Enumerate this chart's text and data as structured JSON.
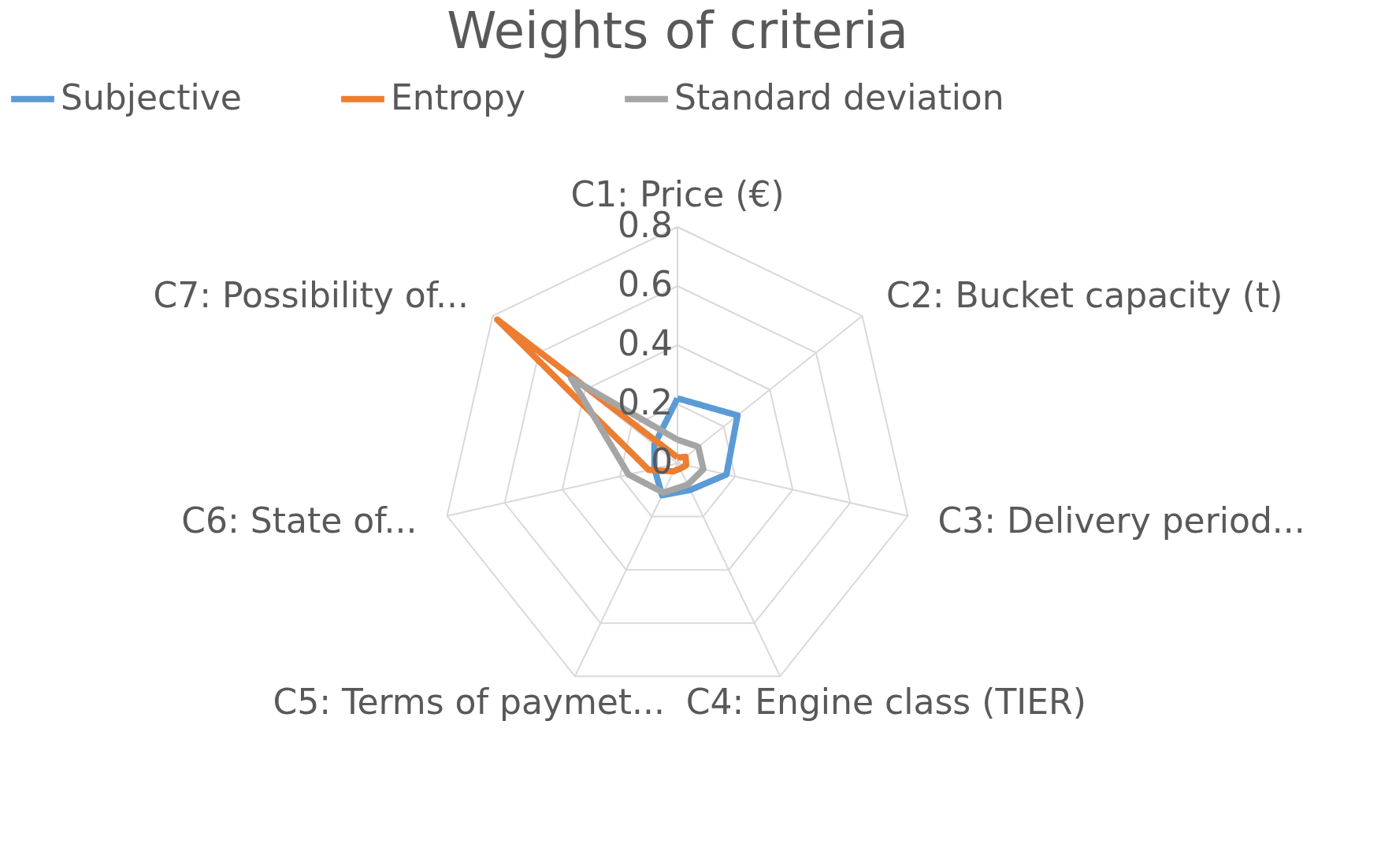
{
  "chart_data": {
    "type": "radar",
    "title": "Weights of criteria",
    "categories": [
      "C1: Price (€)",
      "C2: Bucket capacity (t)",
      "C3: Delivery period...",
      "C4: Engine class (TIER)",
      "C5: Terms of paymet...",
      "C6: State of...",
      "C7: Possibility of..."
    ],
    "series": [
      {
        "name": "Subjective",
        "color": "#5b9bd5",
        "values": [
          0.22,
          0.26,
          0.17,
          0.1,
          0.12,
          0.08,
          0.1
        ]
      },
      {
        "name": "Entropy",
        "color": "#ed7d31",
        "values": [
          0.02,
          0.035,
          0.03,
          0.02,
          0.03,
          0.1,
          0.78
        ]
      },
      {
        "name": "Standard deviation",
        "color": "#a5a5a5",
        "values": [
          0.08,
          0.09,
          0.09,
          0.08,
          0.11,
          0.17,
          0.46
        ]
      }
    ],
    "ylim": [
      0,
      0.8
    ],
    "yticks": [
      0,
      0.2,
      0.4,
      0.6,
      0.8
    ],
    "grid": true,
    "legend": "top",
    "line_style": "solid",
    "marker": "none"
  }
}
